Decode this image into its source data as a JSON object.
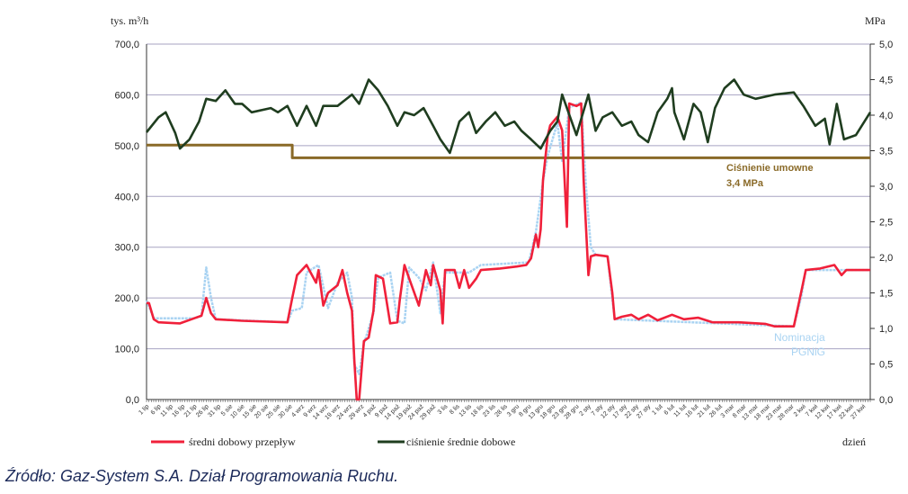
{
  "chart_data": {
    "type": "line",
    "ylabel_left": "tys. m³/h",
    "ylabel_right": "MPa",
    "xlabel": "dzień",
    "ylim_left": [
      0,
      700
    ],
    "ylim_right": [
      0,
      5
    ],
    "yticks_left": [
      "0,0",
      "100,0",
      "200,0",
      "300,0",
      "400,0",
      "500,0",
      "600,0",
      "700,0"
    ],
    "yticks_right": [
      "0,0",
      "0,5",
      "1,0",
      "1,5",
      "2,0",
      "2,5",
      "3,0",
      "3,5",
      "4,0",
      "4,5",
      "5,0"
    ],
    "grid": true,
    "x_days": 304,
    "x_tick_step_days": 5,
    "x_ticks": [
      "1 lip",
      "6 lip",
      "11 lip",
      "16 lip",
      "21 lip",
      "26 lip",
      "31 lip",
      "5 sie",
      "10 sie",
      "15 sie",
      "20 sie",
      "25 sie",
      "30 sie",
      "4 wrz",
      "9 wrz",
      "14 wrz",
      "19 wrz",
      "24 wrz",
      "29 wrz",
      "4 paź",
      "9 paź",
      "14 paź",
      "19 paź",
      "24 paź",
      "29 paź",
      "3 lis",
      "8 lis",
      "13 lis",
      "18 lis",
      "23 lis",
      "28 lis",
      "3 gru",
      "8 gru",
      "13 gru",
      "18 gru",
      "23 gru",
      "28 gru",
      "2 sty",
      "7 sty",
      "12 sty",
      "17 sty",
      "22 sty",
      "27 sty",
      "1 lut",
      "6 lut",
      "11 lut",
      "16 lut",
      "21 lut",
      "26 lut",
      "3 mar",
      "8 mar",
      "13 mar",
      "18 mar",
      "23 mar",
      "28 mar",
      "2 kwi",
      "7 kwi",
      "12 kwi",
      "17 kwi",
      "22 kwi",
      "27 kwi"
    ],
    "series": [
      {
        "name": "średni dobowy przepływ",
        "axis": "left",
        "color": "#f0203a",
        "points": [
          [
            0,
            190
          ],
          [
            1,
            190
          ],
          [
            3,
            158
          ],
          [
            5,
            152
          ],
          [
            14,
            150
          ],
          [
            20,
            160
          ],
          [
            23,
            165
          ],
          [
            25,
            200
          ],
          [
            27,
            170
          ],
          [
            29,
            158
          ],
          [
            40,
            155
          ],
          [
            59,
            152
          ],
          [
            61,
            200
          ],
          [
            63,
            245
          ],
          [
            67,
            265
          ],
          [
            71,
            230
          ],
          [
            72,
            255
          ],
          [
            74,
            185
          ],
          [
            76,
            210
          ],
          [
            80,
            225
          ],
          [
            82,
            255
          ],
          [
            84,
            210
          ],
          [
            86,
            175
          ],
          [
            87,
            78
          ],
          [
            88,
            0
          ],
          [
            89,
            0
          ],
          [
            91,
            115
          ],
          [
            93,
            122
          ],
          [
            95,
            175
          ],
          [
            96,
            245
          ],
          [
            99,
            238
          ],
          [
            102,
            150
          ],
          [
            105,
            152
          ],
          [
            106,
            195
          ],
          [
            108,
            265
          ],
          [
            110,
            238
          ],
          [
            114,
            185
          ],
          [
            117,
            255
          ],
          [
            119,
            225
          ],
          [
            120,
            265
          ],
          [
            123,
            215
          ],
          [
            124,
            150
          ],
          [
            125,
            255
          ],
          [
            129,
            255
          ],
          [
            131,
            220
          ],
          [
            133,
            255
          ],
          [
            135,
            220
          ],
          [
            138,
            238
          ],
          [
            140,
            255
          ],
          [
            148,
            258
          ],
          [
            155,
            262
          ],
          [
            159,
            265
          ],
          [
            161,
            278
          ],
          [
            163,
            325
          ],
          [
            164,
            300
          ],
          [
            165,
            335
          ],
          [
            166,
            432
          ],
          [
            168,
            520
          ],
          [
            169,
            540
          ],
          [
            172,
            557
          ],
          [
            174,
            530
          ],
          [
            176,
            340
          ],
          [
            177,
            583
          ],
          [
            180,
            578
          ],
          [
            182,
            583
          ],
          [
            183,
            432
          ],
          [
            185,
            245
          ],
          [
            186,
            282
          ],
          [
            188,
            285
          ],
          [
            193,
            282
          ],
          [
            195,
            210
          ],
          [
            196,
            158
          ],
          [
            199,
            163
          ],
          [
            203,
            167
          ],
          [
            206,
            158
          ],
          [
            210,
            167
          ],
          [
            214,
            156
          ],
          [
            220,
            167
          ],
          [
            225,
            158
          ],
          [
            231,
            161
          ],
          [
            237,
            152
          ],
          [
            248,
            152
          ],
          [
            259,
            149
          ],
          [
            263,
            144
          ],
          [
            271,
            144
          ],
          [
            274,
            210
          ],
          [
            276,
            255
          ],
          [
            282,
            258
          ],
          [
            288,
            265
          ],
          [
            291,
            245
          ],
          [
            293,
            255
          ],
          [
            303,
            255
          ]
        ]
      },
      {
        "name": "ciśnienie średnie dobowe",
        "axis": "right",
        "color": "#1f3d1f",
        "points": [
          [
            0,
            3.76
          ],
          [
            5,
            3.97
          ],
          [
            8,
            4.04
          ],
          [
            12,
            3.75
          ],
          [
            14,
            3.53
          ],
          [
            18,
            3.66
          ],
          [
            22,
            3.91
          ],
          [
            25,
            4.23
          ],
          [
            29,
            4.2
          ],
          [
            33,
            4.35
          ],
          [
            37,
            4.16
          ],
          [
            40,
            4.16
          ],
          [
            44,
            4.04
          ],
          [
            52,
            4.1
          ],
          [
            55,
            4.04
          ],
          [
            59,
            4.13
          ],
          [
            63,
            3.85
          ],
          [
            67,
            4.13
          ],
          [
            71,
            3.85
          ],
          [
            74,
            4.13
          ],
          [
            80,
            4.13
          ],
          [
            86,
            4.29
          ],
          [
            89,
            4.16
          ],
          [
            93,
            4.5
          ],
          [
            97,
            4.35
          ],
          [
            101,
            4.13
          ],
          [
            105,
            3.85
          ],
          [
            108,
            4.04
          ],
          [
            112,
            4.0
          ],
          [
            116,
            4.1
          ],
          [
            120,
            3.85
          ],
          [
            123,
            3.66
          ],
          [
            127,
            3.47
          ],
          [
            131,
            3.91
          ],
          [
            135,
            4.04
          ],
          [
            138,
            3.75
          ],
          [
            142,
            3.91
          ],
          [
            146,
            4.04
          ],
          [
            150,
            3.85
          ],
          [
            154,
            3.91
          ],
          [
            157,
            3.78
          ],
          [
            161,
            3.66
          ],
          [
            165,
            3.53
          ],
          [
            169,
            3.78
          ],
          [
            172,
            3.91
          ],
          [
            174,
            4.29
          ],
          [
            176,
            4.1
          ],
          [
            180,
            3.72
          ],
          [
            185,
            4.29
          ],
          [
            188,
            3.78
          ],
          [
            191,
            3.97
          ],
          [
            195,
            4.04
          ],
          [
            199,
            3.85
          ],
          [
            203,
            3.91
          ],
          [
            206,
            3.72
          ],
          [
            210,
            3.62
          ],
          [
            214,
            4.04
          ],
          [
            218,
            4.23
          ],
          [
            220,
            4.38
          ],
          [
            221,
            4.04
          ],
          [
            225,
            3.66
          ],
          [
            229,
            4.16
          ],
          [
            232,
            4.04
          ],
          [
            235,
            3.62
          ],
          [
            238,
            4.1
          ],
          [
            242,
            4.38
          ],
          [
            246,
            4.5
          ],
          [
            250,
            4.29
          ],
          [
            255,
            4.23
          ],
          [
            263,
            4.29
          ],
          [
            271,
            4.32
          ],
          [
            275,
            4.13
          ],
          [
            280,
            3.85
          ],
          [
            284,
            3.95
          ],
          [
            286,
            3.59
          ],
          [
            289,
            4.16
          ],
          [
            292,
            3.66
          ],
          [
            297,
            3.72
          ],
          [
            303,
            4.04
          ]
        ]
      },
      {
        "name": "Nominacja PGNiG",
        "axis": "left",
        "color": "#a9d3f2",
        "points": [
          [
            0,
            195
          ],
          [
            3,
            160
          ],
          [
            20,
            160
          ],
          [
            23,
            165
          ],
          [
            25,
            260
          ],
          [
            27,
            200
          ],
          [
            29,
            158
          ],
          [
            59,
            152
          ],
          [
            61,
            175
          ],
          [
            65,
            180
          ],
          [
            67,
            250
          ],
          [
            72,
            265
          ],
          [
            76,
            180
          ],
          [
            80,
            230
          ],
          [
            84,
            250
          ],
          [
            86,
            200
          ],
          [
            87,
            70
          ],
          [
            89,
            50
          ],
          [
            91,
            110
          ],
          [
            95,
            170
          ],
          [
            97,
            240
          ],
          [
            102,
            250
          ],
          [
            105,
            155
          ],
          [
            108,
            150
          ],
          [
            110,
            260
          ],
          [
            114,
            240
          ],
          [
            117,
            215
          ],
          [
            120,
            270
          ],
          [
            123,
            170
          ],
          [
            125,
            250
          ],
          [
            135,
            250
          ],
          [
            140,
            265
          ],
          [
            160,
            270
          ],
          [
            163,
            330
          ],
          [
            166,
            430
          ],
          [
            168,
            480
          ],
          [
            172,
            545
          ],
          [
            174,
            470
          ],
          [
            177,
            575
          ],
          [
            182,
            585
          ],
          [
            184,
            420
          ],
          [
            186,
            300
          ],
          [
            188,
            285
          ],
          [
            193,
            282
          ],
          [
            196,
            158
          ],
          [
            271,
            144
          ],
          [
            274,
            200
          ],
          [
            276,
            255
          ],
          [
            303,
            255
          ]
        ]
      },
      {
        "name": "Ciśnienie umowne",
        "axis": "right",
        "color": "#8a6a28",
        "points": [
          [
            0,
            3.58
          ],
          [
            61,
            3.58
          ],
          [
            61,
            3.4
          ],
          [
            303,
            3.4
          ]
        ]
      }
    ],
    "annotations": {
      "contract_line1": "Ciśnienie umowne",
      "contract_line2": "3,4 MPa",
      "nomination_line1": "Nominacja",
      "nomination_line2": "PGNiG"
    },
    "legend": [
      "średni dobowy przepływ",
      "ciśnienie średnie dobowe"
    ],
    "legend_placement": "bottom"
  },
  "source": "Źródło: Gaz-System S.A. Dział Programowania Ruchu."
}
